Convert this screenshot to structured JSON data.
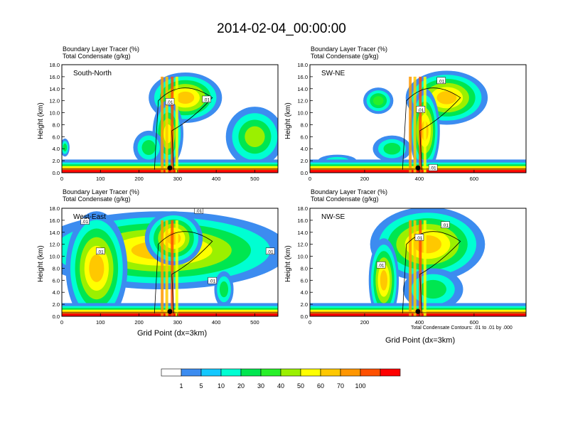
{
  "title": "2014-02-04_00:00:00",
  "panel_header": {
    "line1": "Boundary Layer Tracer   (%)",
    "line2": "Total Condensate   (g/kg)"
  },
  "y_axis_title": "Height (km)",
  "x_axis_title": "Grid Point (dx=3km)",
  "contour_note": "Total Condensate Contours: .01 to .01 by .000",
  "colorbar": {
    "labels": [
      "1",
      "5",
      "10",
      "20",
      "30",
      "40",
      "50",
      "60",
      "70",
      "100"
    ],
    "colors": [
      "#ffffff",
      "#3c8cf0",
      "#14c8ff",
      "#00ffd2",
      "#00e650",
      "#28f028",
      "#9bf000",
      "#ffff00",
      "#ffc800",
      "#ff9600",
      "#ff5000",
      "#ff0000"
    ]
  },
  "chart_data": [
    {
      "type": "heatmap",
      "name": "South-North",
      "xlim": [
        0,
        560
      ],
      "ylim": [
        0,
        18
      ],
      "xticks": [
        "0",
        "100",
        "200",
        "300",
        "400",
        "500"
      ],
      "yticks": [
        "0.0",
        "2.0",
        "4.0",
        "6.0",
        "8.0",
        "10.0",
        "12.0",
        "14.0",
        "16.0",
        "18.0"
      ],
      "marker_x": 280,
      "contour_labels": [
        {
          "text": ".01",
          "x": 280,
          "y": 11.8
        },
        {
          "text": ".01",
          "x": 375,
          "y": 12.2
        }
      ]
    },
    {
      "type": "heatmap",
      "name": "SW-NE",
      "xlim": [
        0,
        790
      ],
      "ylim": [
        0,
        18
      ],
      "xticks": [
        "0",
        "200",
        "400",
        "600"
      ],
      "yticks": [
        "0.0",
        "2.0",
        "4.0",
        "6.0",
        "8.0",
        "10.0",
        "12.0",
        "14.0",
        "16.0",
        "18.0"
      ],
      "marker_x": 395,
      "contour_labels": [
        {
          "text": ".01",
          "x": 405,
          "y": 10.5
        },
        {
          "text": ".01",
          "x": 480,
          "y": 15.3
        },
        {
          "text": ".01",
          "x": 450,
          "y": 0.8
        }
      ]
    },
    {
      "type": "heatmap",
      "name": "West-East",
      "xlim": [
        0,
        560
      ],
      "ylim": [
        0,
        18
      ],
      "xticks": [
        "0",
        "100",
        "200",
        "300",
        "400",
        "500"
      ],
      "yticks": [
        "0.0",
        "2.0",
        "4.0",
        "6.0",
        "8.0",
        "10.0",
        "12.0",
        "14.0",
        "16.0",
        "18.0"
      ],
      "marker_x": 280,
      "contour_labels": [
        {
          "text": ".01",
          "x": 60,
          "y": 15.8
        },
        {
          "text": ".01",
          "x": 100,
          "y": 10.8
        },
        {
          "text": ".01",
          "x": 355,
          "y": 17.6
        },
        {
          "text": ".01",
          "x": 390,
          "y": 5.9
        },
        {
          "text": ".01",
          "x": 540,
          "y": 10.8
        }
      ]
    },
    {
      "type": "heatmap",
      "name": "NW-SE",
      "xlim": [
        0,
        790
      ],
      "ylim": [
        0,
        18
      ],
      "xticks": [
        "0",
        "200",
        "400",
        "600"
      ],
      "yticks": [
        "0.0",
        "2.0",
        "4.0",
        "6.0",
        "8.0",
        "10.0",
        "12.0",
        "14.0",
        "16.0",
        "18.0"
      ],
      "marker_x": 395,
      "contour_labels": [
        {
          "text": ".01",
          "x": 495,
          "y": 15.2
        },
        {
          "text": ".01",
          "x": 400,
          "y": 13.1
        },
        {
          "text": ".01",
          "x": 260,
          "y": 8.5
        }
      ]
    }
  ]
}
